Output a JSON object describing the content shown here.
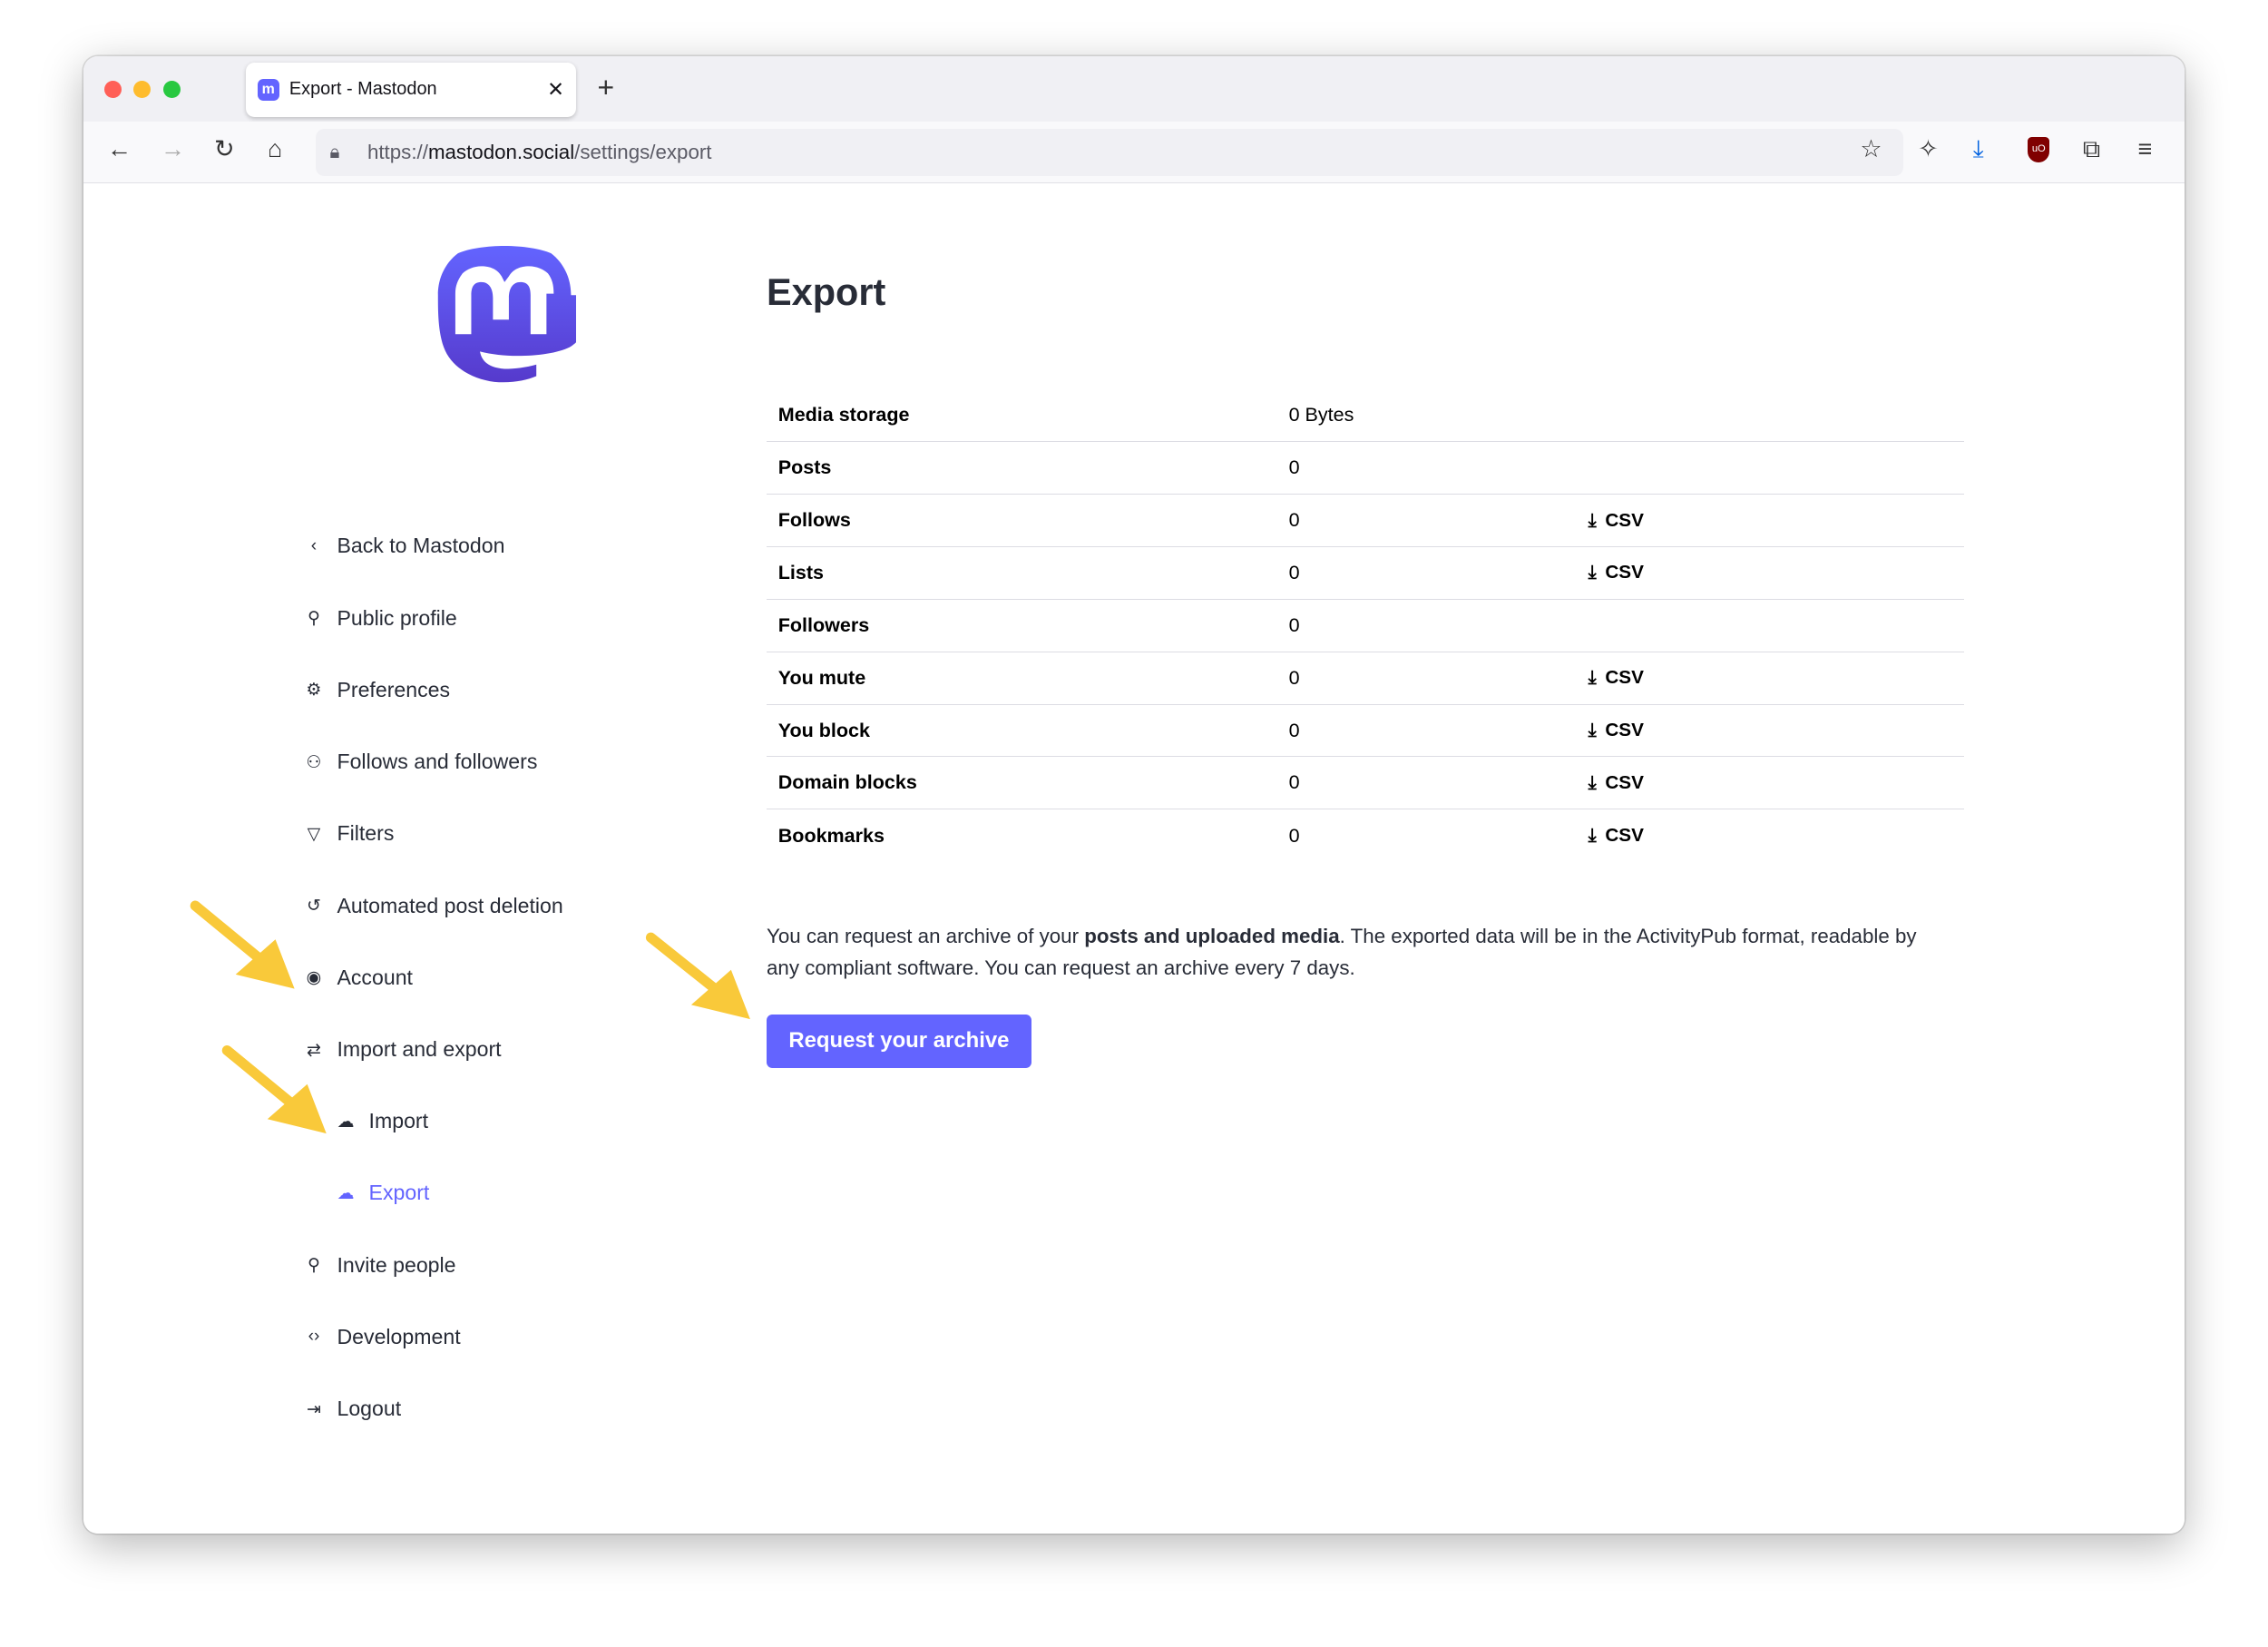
{
  "browser": {
    "tab_title": "Export - Mastodon",
    "tab_favicon": "mastodon-icon",
    "url_scheme": "https://",
    "url_host": "mastodon.social",
    "url_path": "/settings/export",
    "toolbar_icons": [
      "back-icon",
      "forward-icon",
      "reload-icon",
      "home-icon",
      "lock-icon",
      "bookmark-star-icon",
      "cleaner-icon",
      "download-icon",
      "ublock-icon",
      "extensions-icon",
      "menu-icon"
    ]
  },
  "sidebar": {
    "items": [
      {
        "label": "Back to Mastodon",
        "icon": "chevron-left-icon"
      },
      {
        "label": "Public profile",
        "icon": "person-icon"
      },
      {
        "label": "Preferences",
        "icon": "gear-icon"
      },
      {
        "label": "Follows and followers",
        "icon": "people-icon"
      },
      {
        "label": "Filters",
        "icon": "filter-icon"
      },
      {
        "label": "Automated post deletion",
        "icon": "history-icon"
      },
      {
        "label": "Account",
        "icon": "account-circle-icon"
      },
      {
        "label": "Import and export",
        "icon": "import-export-icon"
      },
      {
        "label": "Import",
        "icon": "cloud-upload-icon"
      },
      {
        "label": "Export",
        "icon": "cloud-download-icon",
        "active": true
      },
      {
        "label": "Invite people",
        "icon": "person-add-icon"
      },
      {
        "label": "Development",
        "icon": "code-icon"
      },
      {
        "label": "Logout",
        "icon": "logout-icon"
      }
    ]
  },
  "main": {
    "title": "Export",
    "rows": [
      {
        "label": "Media storage",
        "value": "0 Bytes",
        "csv": ""
      },
      {
        "label": "Posts",
        "value": "0",
        "csv": ""
      },
      {
        "label": "Follows",
        "value": "0",
        "csv": "CSV"
      },
      {
        "label": "Lists",
        "value": "0",
        "csv": "CSV"
      },
      {
        "label": "Followers",
        "value": "0",
        "csv": ""
      },
      {
        "label": "You mute",
        "value": "0",
        "csv": "CSV"
      },
      {
        "label": "You block",
        "value": "0",
        "csv": "CSV"
      },
      {
        "label": "Domain blocks",
        "value": "0",
        "csv": "CSV"
      },
      {
        "label": "Bookmarks",
        "value": "0",
        "csv": "CSV"
      }
    ],
    "desc_before": "You can request an archive of your ",
    "desc_bold": "posts and uploaded media",
    "desc_after": ". The exported data will be in the ActivityPub format, readable by any compliant software. You can request an archive every 7 days.",
    "request_button": "Request your archive"
  },
  "colors": {
    "accent": "#6364ff",
    "annotation_arrow": "#f9c93a"
  }
}
